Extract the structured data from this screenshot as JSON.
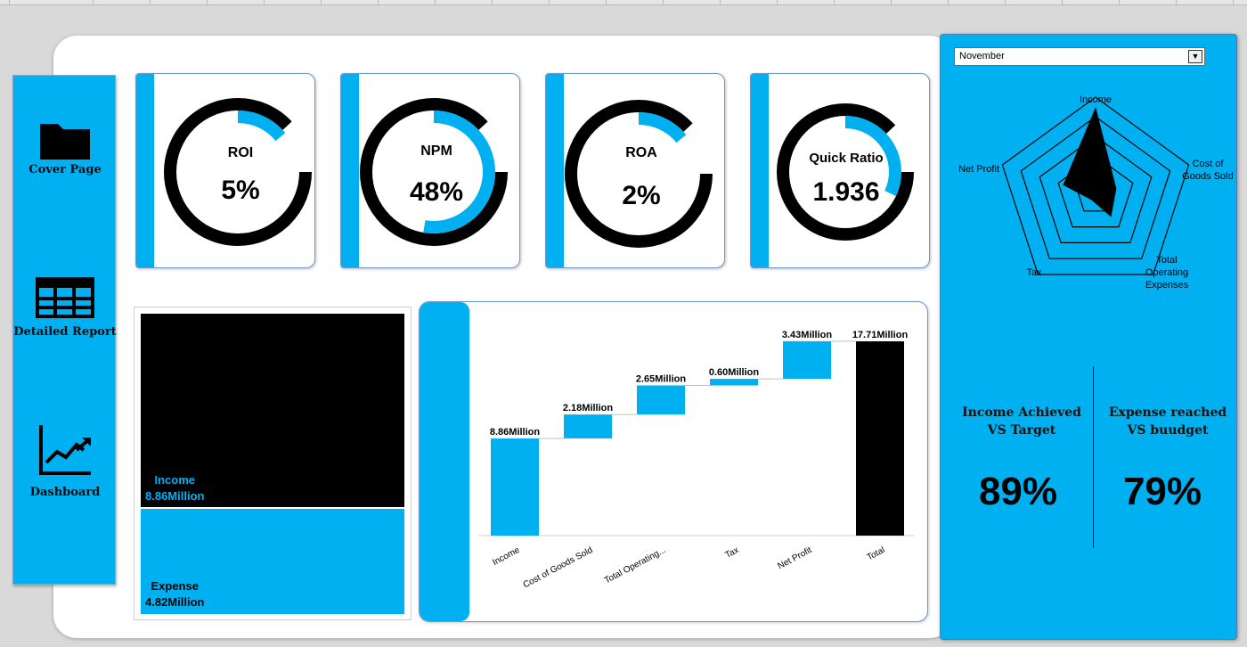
{
  "navigation": {
    "items": [
      {
        "label": "Cover Page",
        "icon": "folder-icon"
      },
      {
        "label": "Detailed Report",
        "icon": "table-icon"
      },
      {
        "label": "Dashboard",
        "icon": "line-chart-icon"
      }
    ]
  },
  "kpis": [
    {
      "label": "ROI",
      "value": "5%",
      "fill": 0.05
    },
    {
      "label": "NPM",
      "value": "48%",
      "fill": 0.48
    },
    {
      "label": "ROA",
      "value": "2%",
      "fill": 0.02
    },
    {
      "label": "Quick Ratio",
      "value": "1.936",
      "fill": 0.25
    }
  ],
  "treemap": {
    "income": {
      "label": "Income",
      "value": "8.86Million",
      "amount": 8.86
    },
    "expense": {
      "label": "Expense",
      "value": "4.82Million",
      "amount": 4.82
    }
  },
  "chart_data": [
    {
      "type": "bar",
      "subtype": "waterfall",
      "categories": [
        "Income",
        "Cost of Goods Sold",
        "Total Operating...",
        "Tax",
        "Net Profit",
        "Total"
      ],
      "values": [
        8.86,
        2.18,
        2.65,
        0.6,
        3.43,
        17.71
      ],
      "data_labels": [
        "8.86Million",
        "2.18Million",
        "2.65Million",
        "0.60Million",
        "3.43Million",
        "17.71Million"
      ],
      "title": "",
      "xlabel": "",
      "ylabel": "",
      "colors": {
        "step": "#00b0f0",
        "total": "#000000"
      }
    },
    {
      "type": "radar",
      "axes": [
        "Income",
        "Cost of Goods Sold",
        "Total Operating Expenses",
        "Tax",
        "Net Profit"
      ],
      "axis_labels": [
        "Income",
        "Cost of\nGoods Sold",
        "Total\nOperating\nExpenses",
        "Tax",
        "Net Profit"
      ],
      "values": [
        8.86,
        2.18,
        2.65,
        0.6,
        3.43
      ],
      "max": 10,
      "rings": 5,
      "colors": {
        "fill": "#000000",
        "grid": "#000000"
      }
    }
  ],
  "right_panel": {
    "month": "November",
    "metrics": [
      {
        "title": "Income Achieved VS Target",
        "value": "89%"
      },
      {
        "title": "Expense reached VS buudget",
        "value": "79%"
      }
    ]
  },
  "colors": {
    "accent": "#00b0f0",
    "dark": "#000000",
    "panel_bg": "#ffffff"
  }
}
